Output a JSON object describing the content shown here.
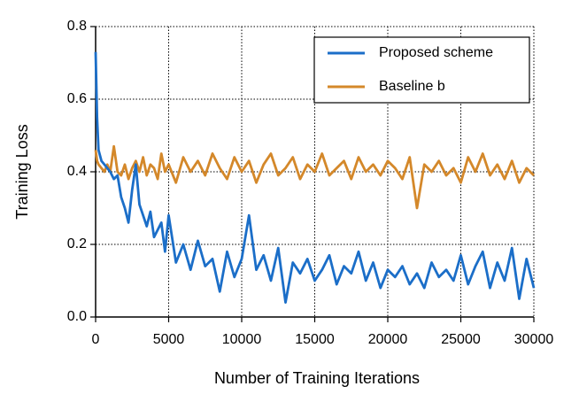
{
  "chart_data": {
    "type": "line",
    "xlabel": "Number of Training Iterations",
    "ylabel": "Training Loss",
    "x": [
      0,
      100,
      200,
      400,
      600,
      800,
      1000,
      1250,
      1500,
      1750,
      2000,
      2250,
      2500,
      2750,
      3000,
      3250,
      3500,
      3750,
      4000,
      4250,
      4500,
      4750,
      5000,
      5500,
      6000,
      6500,
      7000,
      7500,
      8000,
      8500,
      9000,
      9500,
      10000,
      10500,
      11000,
      11500,
      12000,
      12500,
      13000,
      13500,
      14000,
      14500,
      15000,
      15500,
      16000,
      16500,
      17000,
      17500,
      18000,
      18500,
      19000,
      19500,
      20000,
      20500,
      21000,
      21500,
      22000,
      22500,
      23000,
      23500,
      24000,
      24500,
      25000,
      25500,
      26000,
      26500,
      27000,
      27500,
      28000,
      28500,
      29000,
      29500,
      30000
    ],
    "series": [
      {
        "name": "Proposed scheme",
        "color": "#1b6ec8",
        "values": [
          0.73,
          0.55,
          0.46,
          0.43,
          0.42,
          0.41,
          0.4,
          0.38,
          0.39,
          0.33,
          0.3,
          0.26,
          0.35,
          0.42,
          0.31,
          0.28,
          0.25,
          0.29,
          0.22,
          0.24,
          0.26,
          0.18,
          0.28,
          0.15,
          0.2,
          0.13,
          0.21,
          0.14,
          0.16,
          0.07,
          0.18,
          0.11,
          0.16,
          0.28,
          0.13,
          0.17,
          0.1,
          0.19,
          0.04,
          0.15,
          0.12,
          0.16,
          0.1,
          0.13,
          0.17,
          0.09,
          0.14,
          0.12,
          0.18,
          0.1,
          0.15,
          0.08,
          0.13,
          0.11,
          0.14,
          0.09,
          0.12,
          0.08,
          0.15,
          0.11,
          0.13,
          0.1,
          0.17,
          0.09,
          0.14,
          0.18,
          0.08,
          0.15,
          0.1,
          0.19,
          0.05,
          0.16,
          0.08
        ]
      },
      {
        "name": "Baseline b",
        "color": "#d4882a",
        "values": [
          0.46,
          0.43,
          0.42,
          0.41,
          0.4,
          0.42,
          0.4,
          0.47,
          0.4,
          0.39,
          0.42,
          0.38,
          0.41,
          0.43,
          0.4,
          0.44,
          0.39,
          0.42,
          0.41,
          0.38,
          0.45,
          0.4,
          0.42,
          0.37,
          0.44,
          0.4,
          0.43,
          0.39,
          0.45,
          0.41,
          0.38,
          0.44,
          0.4,
          0.43,
          0.37,
          0.42,
          0.45,
          0.39,
          0.41,
          0.44,
          0.38,
          0.42,
          0.4,
          0.45,
          0.39,
          0.41,
          0.43,
          0.38,
          0.44,
          0.4,
          0.42,
          0.39,
          0.43,
          0.41,
          0.38,
          0.44,
          0.3,
          0.42,
          0.4,
          0.43,
          0.39,
          0.41,
          0.37,
          0.44,
          0.4,
          0.45,
          0.39,
          0.42,
          0.38,
          0.43,
          0.37,
          0.41,
          0.39
        ]
      }
    ],
    "xlim": [
      0,
      30000
    ],
    "xticks": [
      0,
      5000,
      10000,
      15000,
      20000,
      25000,
      30000
    ],
    "ylim": [
      0,
      0.8
    ],
    "yticks": [
      {
        "value": 0,
        "label": "0.0"
      },
      0.2,
      0.4,
      0.6,
      0.8
    ],
    "grid": true,
    "legend": "upper right"
  }
}
